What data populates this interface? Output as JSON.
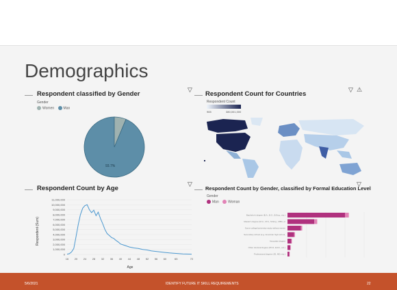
{
  "slide": {
    "title": "Demographics",
    "footer": {
      "date": "5/6/2021",
      "center": "IDENTIFY FUTURE IT SKILL REQUIREMENTS",
      "page": "22"
    }
  },
  "panels": {
    "gender": {
      "title": "Respondent classified by Gender",
      "legend_title": "Gender",
      "legend": [
        {
          "label": "Women",
          "color": "#9fb2b0"
        },
        {
          "label": "Man",
          "color": "#5d8ea8"
        }
      ],
      "pie_label": "93.7%",
      "icons": [
        "filter-icon"
      ]
    },
    "countries": {
      "title": "Respondent Count for Countries",
      "legend_title": "Respondent Count",
      "legend_min": "965",
      "legend_max": "380,001,000",
      "icons": [
        "filter-icon",
        "warning-icon"
      ]
    },
    "age": {
      "title": "Respondent Count by Age",
      "ylabel": "Respondent (Sum)",
      "xlabel": "Age",
      "yticks": [
        "11,000,000",
        "10,000,000",
        "9,000,000",
        "8,000,000",
        "7,000,000",
        "6,000,000",
        "5,000,000",
        "4,000,000",
        "3,000,000",
        "2,000,000",
        "1,000,000",
        "0"
      ],
      "xticks": [
        "16",
        "20",
        "24",
        "28",
        "32",
        "36",
        "40",
        "44",
        "48",
        "52",
        "56",
        "60",
        "65",
        "72"
      ],
      "icons": [
        "filter-icon"
      ]
    },
    "education": {
      "title": "Respondent Count by Gender, classified by Formal Education Level",
      "legend_title": "Gender",
      "legend": [
        {
          "label": "Man",
          "color": "#b0317e"
        },
        {
          "label": "Woman",
          "color": "#e283b6"
        }
      ],
      "categories": [
        "Bachelor's degree (B.A., B.S., B.Eng., etc.)",
        "Master's degree (M.A., M.S., M.Eng., MBA, etc.)",
        "Some college/university study without earning a degree",
        "Secondary school (e.g. American high school, German Realschule or Gymnasium, etc.)",
        "Associate degree",
        "Other doctoral degree (Ph.D, Ed.D., etc.)",
        "Professional degree (JD, MD, etc.)"
      ],
      "icons": [
        "filter-icon"
      ]
    }
  },
  "chart_data": [
    {
      "type": "pie",
      "title": "Respondent classified by Gender",
      "categories": [
        "Women",
        "Man"
      ],
      "values": [
        6.3,
        93.7
      ]
    },
    {
      "type": "line",
      "title": "Respondent Count by Age",
      "xlabel": "Age",
      "ylabel": "Respondent (Sum)",
      "ylim": [
        0,
        11000000
      ],
      "x": [
        16,
        17,
        18,
        19,
        20,
        21,
        22,
        23,
        24,
        25,
        26,
        27,
        28,
        29,
        30,
        31,
        32,
        33,
        34,
        35,
        36,
        37,
        38,
        39,
        40,
        42,
        44,
        46,
        48,
        50,
        52,
        54,
        56,
        58,
        60,
        62,
        65,
        68,
        72
      ],
      "values": [
        50000,
        150000,
        500000,
        1200000,
        3500000,
        6000000,
        8000000,
        9300000,
        9800000,
        10000000,
        9000000,
        8400000,
        8900000,
        7800000,
        8500000,
        7200000,
        6200000,
        5000000,
        4200000,
        3800000,
        3400000,
        3200000,
        2800000,
        2500000,
        2100000,
        1800000,
        1500000,
        1300000,
        1200000,
        1000000,
        900000,
        700000,
        600000,
        500000,
        400000,
        300000,
        200000,
        100000,
        50000
      ]
    },
    {
      "type": "bar",
      "title": "Respondent Count by Gender, classified by Formal Education Level",
      "categories": [
        "Bachelor's degree (B.A., B.S., B.Eng., etc.)",
        "Master's degree (M.A., M.S., M.Eng., MBA, etc.)",
        "Some college/university study without earning a degree",
        "Secondary school (e.g. American high school, German Realschule or Gymnasium, etc.)",
        "Associate degree",
        "Other doctoral degree (Ph.D, Ed.D., etc.)",
        "Professional degree (JD, MD, etc.)"
      ],
      "series": [
        {
          "name": "Man",
          "values": [
            30000000,
            14000000,
            7000000,
            3500000,
            2000000,
            1500000,
            1000000
          ]
        },
        {
          "name": "Woman",
          "values": [
            2000000,
            1500000,
            700000,
            400000,
            300000,
            200000,
            150000
          ]
        }
      ]
    }
  ]
}
